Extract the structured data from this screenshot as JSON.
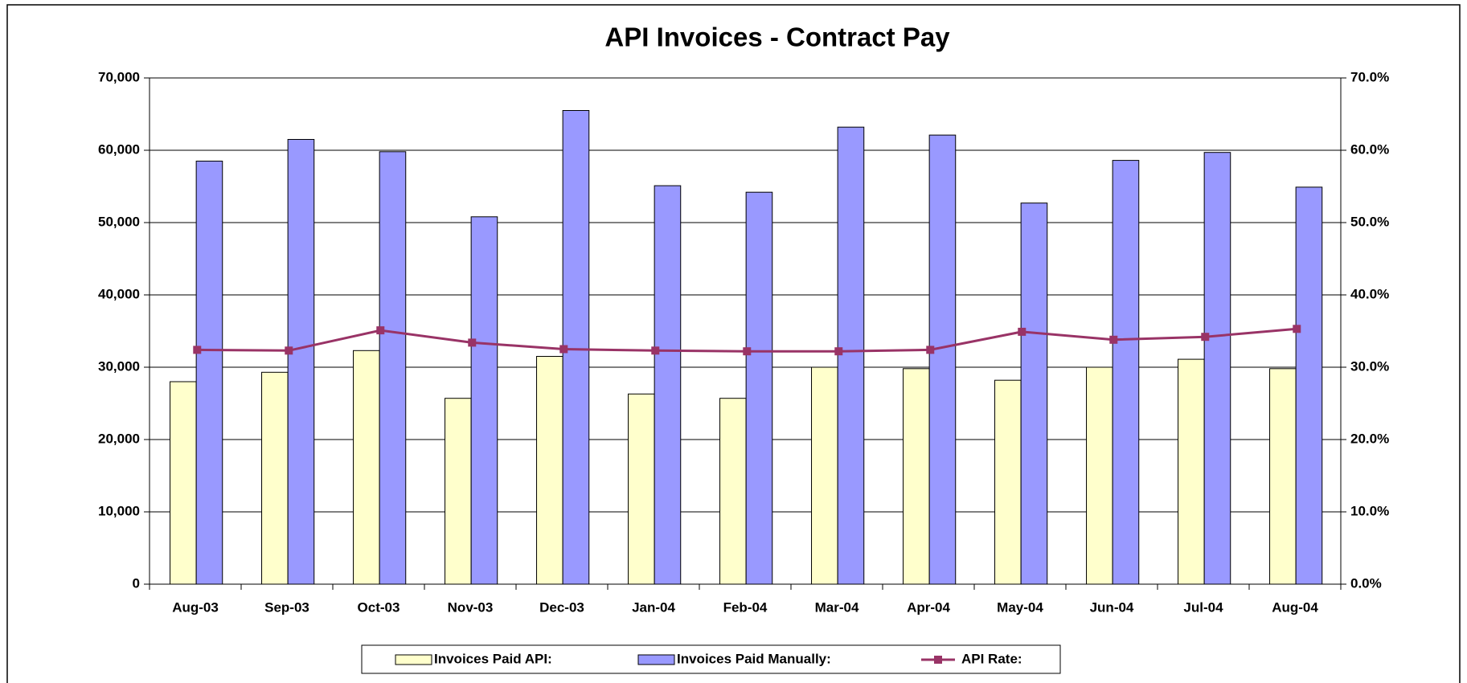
{
  "chart_data": {
    "type": "bar",
    "title": "API Invoices - Contract Pay",
    "categories": [
      "Aug-03",
      "Sep-03",
      "Oct-03",
      "Nov-03",
      "Dec-03",
      "Jan-04",
      "Feb-04",
      "Mar-04",
      "Apr-04",
      "May-04",
      "Jun-04",
      "Jul-04",
      "Aug-04"
    ],
    "series": [
      {
        "name": "Invoices Paid API:",
        "color": "#ffffcc",
        "type": "bar",
        "values": [
          28000,
          29300,
          32300,
          25700,
          31500,
          26300,
          25700,
          30000,
          29800,
          28200,
          30000,
          31100,
          29800
        ]
      },
      {
        "name": "Invoices Paid Manually:",
        "color": "#9999ff",
        "type": "bar",
        "values": [
          58500,
          61500,
          59800,
          50800,
          65500,
          55100,
          54200,
          63200,
          62100,
          52700,
          58600,
          59700,
          54900
        ]
      },
      {
        "name": "API Rate:",
        "color": "#993366",
        "type": "line",
        "axis": "y2",
        "values": [
          32.4,
          32.3,
          35.1,
          33.4,
          32.5,
          32.3,
          32.2,
          32.2,
          32.4,
          34.9,
          33.8,
          34.2,
          35.3
        ]
      }
    ],
    "ylim": [
      0,
      70000
    ],
    "yticks": [
      0,
      {
        "value": 10000,
        "label": "10,000"
      },
      {
        "value": 20000,
        "label": "20,000"
      },
      {
        "value": 30000,
        "label": "30,000"
      },
      {
        "value": 40000,
        "label": "40,000"
      },
      {
        "value": 50000,
        "label": "50,000"
      },
      {
        "value": 60000,
        "label": "60,000"
      },
      {
        "value": 70000,
        "label": "70,000"
      }
    ],
    "y2lim": [
      0,
      70
    ],
    "y2ticks": [
      {
        "value": 0,
        "label": "0.0%"
      },
      {
        "value": 10,
        "label": "10.0%"
      },
      {
        "value": 20,
        "label": "20.0%"
      },
      {
        "value": 30,
        "label": "30.0%"
      },
      {
        "value": 40,
        "label": "40.0%"
      },
      {
        "value": 50,
        "label": "50.0%"
      },
      {
        "value": 60,
        "label": "60.0%"
      },
      {
        "value": 70,
        "label": "70.0%"
      }
    ],
    "grid": true,
    "legend": "bottom"
  }
}
